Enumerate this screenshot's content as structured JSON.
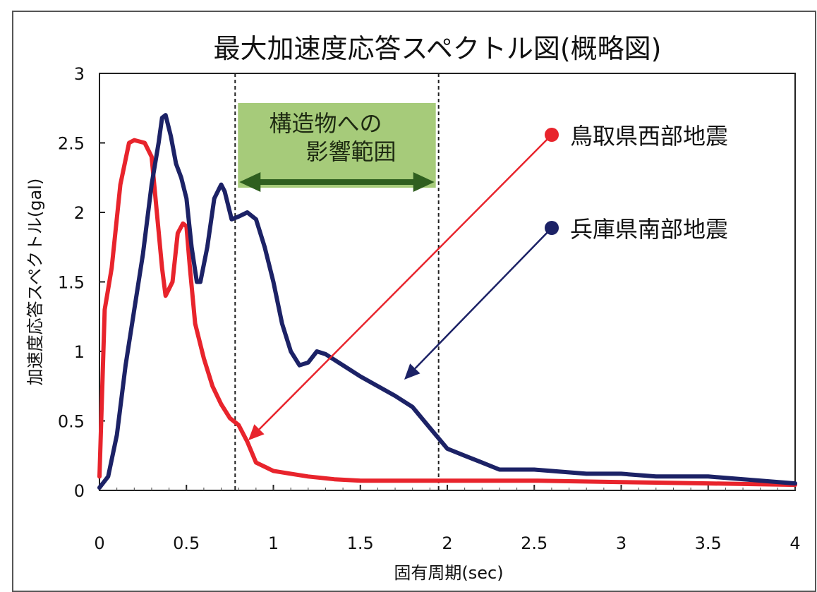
{
  "chart_data": {
    "type": "line",
    "title": "最大加速度応答スペクトル図(概略図)",
    "xlabel": "固有周期(sec)",
    "ylabel": "加速度応答スペクトル(gal)",
    "xlim": [
      0,
      4
    ],
    "ylim": [
      0,
      3
    ],
    "x_ticks": [
      "0",
      "0.5",
      "1",
      "1.5",
      "2",
      "2.5",
      "3",
      "3.5",
      "4"
    ],
    "y_ticks": [
      "0",
      "0.5",
      "1",
      "1.5",
      "2",
      "2.5",
      "3"
    ],
    "grid": false,
    "legend_placement": "right",
    "annotation": {
      "label_line1": "構造物への",
      "label_line2": "影響範囲",
      "x_start": 0.78,
      "x_end": 1.95,
      "color": "#9cc56b",
      "arrow_color": "#2f5f1f"
    },
    "series": [
      {
        "name": "鳥取県西部地震",
        "color": "#e8242c",
        "marker_color": "#e8242c",
        "x": [
          0,
          0.03,
          0.07,
          0.12,
          0.17,
          0.2,
          0.26,
          0.3,
          0.33,
          0.36,
          0.38,
          0.42,
          0.45,
          0.48,
          0.5,
          0.52,
          0.55,
          0.6,
          0.65,
          0.7,
          0.75,
          0.8,
          0.85,
          0.9,
          1.0,
          1.1,
          1.2,
          1.35,
          1.5,
          2.0,
          2.5,
          3.0,
          3.5,
          4.0
        ],
        "y": [
          0.1,
          1.3,
          1.6,
          2.2,
          2.5,
          2.52,
          2.5,
          2.4,
          2.0,
          1.6,
          1.4,
          1.5,
          1.85,
          1.92,
          1.9,
          1.6,
          1.2,
          0.95,
          0.75,
          0.62,
          0.52,
          0.47,
          0.35,
          0.2,
          0.14,
          0.12,
          0.1,
          0.08,
          0.07,
          0.07,
          0.07,
          0.06,
          0.05,
          0.04
        ]
      },
      {
        "name": "兵庫県南部地震",
        "color": "#1c2266",
        "marker_color": "#1c2266",
        "x": [
          0,
          0.05,
          0.1,
          0.15,
          0.2,
          0.25,
          0.3,
          0.34,
          0.36,
          0.38,
          0.41,
          0.44,
          0.47,
          0.5,
          0.53,
          0.56,
          0.58,
          0.62,
          0.66,
          0.7,
          0.72,
          0.76,
          0.8,
          0.85,
          0.9,
          0.95,
          1.0,
          1.05,
          1.1,
          1.15,
          1.2,
          1.25,
          1.3,
          1.4,
          1.5,
          1.6,
          1.7,
          1.8,
          1.9,
          2.0,
          2.1,
          2.2,
          2.3,
          2.5,
          2.8,
          3.0,
          3.2,
          3.5,
          4.0
        ],
        "y": [
          0.02,
          0.1,
          0.4,
          0.9,
          1.3,
          1.7,
          2.2,
          2.5,
          2.68,
          2.7,
          2.55,
          2.35,
          2.25,
          2.1,
          1.75,
          1.5,
          1.5,
          1.75,
          2.1,
          2.2,
          2.15,
          1.95,
          1.97,
          2.0,
          1.95,
          1.75,
          1.5,
          1.2,
          1.0,
          0.9,
          0.92,
          1.0,
          0.98,
          0.9,
          0.82,
          0.75,
          0.68,
          0.6,
          0.45,
          0.3,
          0.25,
          0.2,
          0.15,
          0.15,
          0.12,
          0.12,
          0.1,
          0.1,
          0.05
        ]
      }
    ]
  }
}
